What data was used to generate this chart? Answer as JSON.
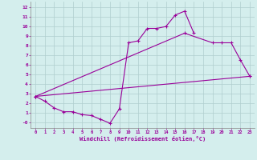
{
  "bg_color": "#d4eeed",
  "line_color": "#990099",
  "xlim": [
    -0.5,
    23.5
  ],
  "ylim": [
    -0.6,
    12.6
  ],
  "xticks": [
    0,
    1,
    2,
    3,
    4,
    5,
    6,
    7,
    8,
    9,
    10,
    11,
    12,
    13,
    14,
    15,
    16,
    17,
    18,
    19,
    20,
    21,
    22,
    23
  ],
  "yticks": [
    0,
    1,
    2,
    3,
    4,
    5,
    6,
    7,
    8,
    9,
    10,
    11,
    12
  ],
  "ytick_labels": [
    "-0",
    "1",
    "2",
    "3",
    "4",
    "5",
    "6",
    "7",
    "8",
    "9",
    "10",
    "11",
    "12"
  ],
  "xlabel": "Windchill (Refroidissement éolien,°C)",
  "line1_x": [
    0,
    1,
    2,
    3,
    4,
    5,
    6,
    7,
    8,
    9,
    10,
    11,
    12,
    13,
    14,
    15,
    16,
    17
  ],
  "line1_y": [
    2.7,
    2.2,
    1.5,
    1.1,
    1.1,
    0.8,
    0.7,
    0.3,
    -0.1,
    1.4,
    8.3,
    8.5,
    9.8,
    9.8,
    10.0,
    11.2,
    11.6,
    9.3
  ],
  "line2_x": [
    0,
    23
  ],
  "line2_y": [
    2.7,
    4.8
  ],
  "line3_x": [
    0,
    16,
    19,
    20,
    21,
    22,
    23
  ],
  "line3_y": [
    2.7,
    9.3,
    8.3,
    8.3,
    8.3,
    6.5,
    4.8
  ]
}
